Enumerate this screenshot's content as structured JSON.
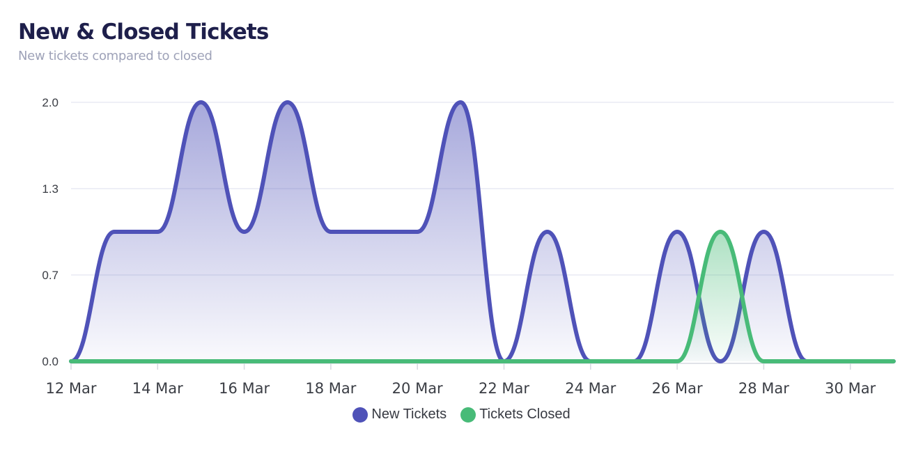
{
  "header": {
    "title": "New & Closed Tickets",
    "subtitle": "New tickets compared to closed"
  },
  "legend": [
    {
      "label": "New Tickets",
      "color": "#4f52b8"
    },
    {
      "label": "Tickets Closed",
      "color": "#48bb78"
    }
  ],
  "chart_data": {
    "type": "area",
    "title": "New & Closed Tickets",
    "subtitle": "New tickets compared to closed",
    "xlabel": "",
    "ylabel": "",
    "x": [
      "12 Mar",
      "13 Mar",
      "14 Mar",
      "15 Mar",
      "16 Mar",
      "17 Mar",
      "18 Mar",
      "19 Mar",
      "20 Mar",
      "21 Mar",
      "22 Mar",
      "23 Mar",
      "24 Mar",
      "25 Mar",
      "26 Mar",
      "27 Mar",
      "28 Mar",
      "29 Mar",
      "30 Mar",
      "31 Mar"
    ],
    "x_tick_labels": [
      "12 Mar",
      "14 Mar",
      "16 Mar",
      "18 Mar",
      "20 Mar",
      "22 Mar",
      "24 Mar",
      "26 Mar",
      "28 Mar",
      "30 Mar"
    ],
    "y_tick_labels": [
      "0.0",
      "0.7",
      "1.3",
      "2.0"
    ],
    "ylim": [
      0,
      2
    ],
    "grid": true,
    "legend_position": "bottom",
    "curve": "smooth",
    "series": [
      {
        "name": "New Tickets",
        "color": "#4f52b8",
        "values": [
          0,
          1,
          1,
          2,
          1,
          2,
          1,
          1,
          1,
          2,
          0,
          1,
          0,
          0,
          1,
          0,
          1,
          0,
          0,
          0
        ]
      },
      {
        "name": "Tickets Closed",
        "color": "#48bb78",
        "values": [
          0,
          0,
          0,
          0,
          0,
          0,
          0,
          0,
          0,
          0,
          0,
          0,
          0,
          0,
          0,
          1,
          0,
          0,
          0,
          0
        ]
      }
    ]
  }
}
